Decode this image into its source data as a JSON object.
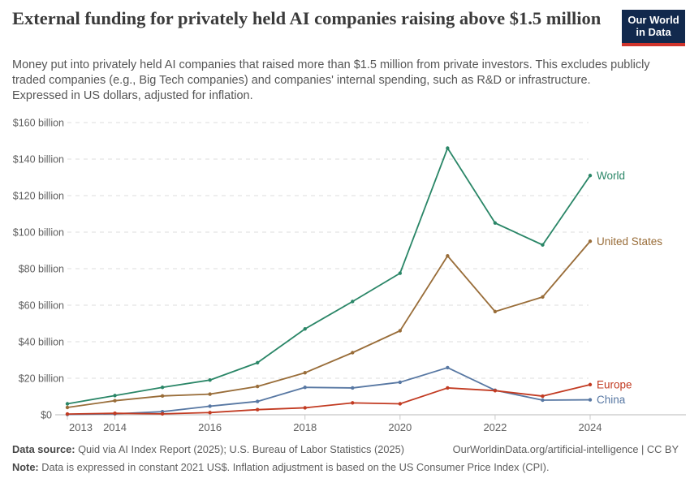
{
  "header": {
    "title_lines": [
      "External funding for privately held AI companies raising above $1.5",
      "million"
    ],
    "subtitle_lines": [
      "Money put into privately held AI companies that raised more than $1.5 million from private investors. This excludes publicly",
      "traded companies (e.g., Big Tech companies) and companies' internal spending, such as R&D or infrastructure.",
      "Expressed in US dollars, adjusted for inflation."
    ]
  },
  "logo": {
    "line1": "Our World",
    "line2": "in Data",
    "bg_color": "#12294d",
    "accent_color": "#d0342c"
  },
  "chart_data": {
    "type": "line",
    "title": "External funding for privately held AI companies raising above $1.5 million",
    "xlabel": "",
    "ylabel": "",
    "unit": "billion US$ (constant 2021 US$)",
    "x": [
      2013,
      2014,
      2015,
      2016,
      2017,
      2018,
      2019,
      2020,
      2021,
      2022,
      2023,
      2024
    ],
    "series": [
      {
        "name": "World",
        "color": "#2a8667",
        "values": [
          6.0,
          10.5,
          15.0,
          19.0,
          28.5,
          47.0,
          62.0,
          77.5,
          146.0,
          105.0,
          93.0,
          131.0
        ]
      },
      {
        "name": "United States",
        "color": "#996d39",
        "values": [
          4.0,
          7.7,
          10.3,
          11.3,
          15.5,
          23.0,
          34.0,
          46.0,
          87.0,
          56.5,
          64.5,
          95.0
        ]
      },
      {
        "name": "China",
        "color": "#5878a3",
        "values": [
          0.2,
          0.5,
          1.7,
          4.7,
          7.3,
          15.0,
          14.7,
          17.8,
          25.8,
          13.4,
          8.0,
          8.2
        ]
      },
      {
        "name": "Europe",
        "color": "#c23b22",
        "values": [
          0.4,
          0.8,
          0.5,
          1.2,
          2.8,
          3.8,
          6.5,
          6.0,
          14.7,
          13.2,
          10.2,
          16.5
        ]
      }
    ],
    "ylim": [
      0,
      160
    ],
    "ytick_values": [
      0,
      20,
      40,
      60,
      80,
      100,
      120,
      140,
      160
    ],
    "ytick_labels": [
      "$0",
      "$20 billion",
      "$40 billion",
      "$60 billion",
      "$80 billion",
      "$100 billion",
      "$120 billion",
      "$140 billion",
      "$160 billion"
    ],
    "xtick_labels": [
      "2013",
      "2014",
      "2016",
      "2018",
      "2020",
      "2022",
      "2024"
    ],
    "grid": "horizontal dashed",
    "legend": "labels at line ends, right side"
  },
  "footer": {
    "source_label": "Data source:",
    "source_text": " Quid via AI Index Report (2025); U.S. Bureau of Labor Statistics (2025)",
    "link": "OurWorldinData.org/artificial-intelligence | CC BY",
    "note_label": "Note:",
    "note_text": " Data is expressed in constant 2021 US$. Inflation adjustment is based on the US Consumer Price Index (CPI)."
  }
}
